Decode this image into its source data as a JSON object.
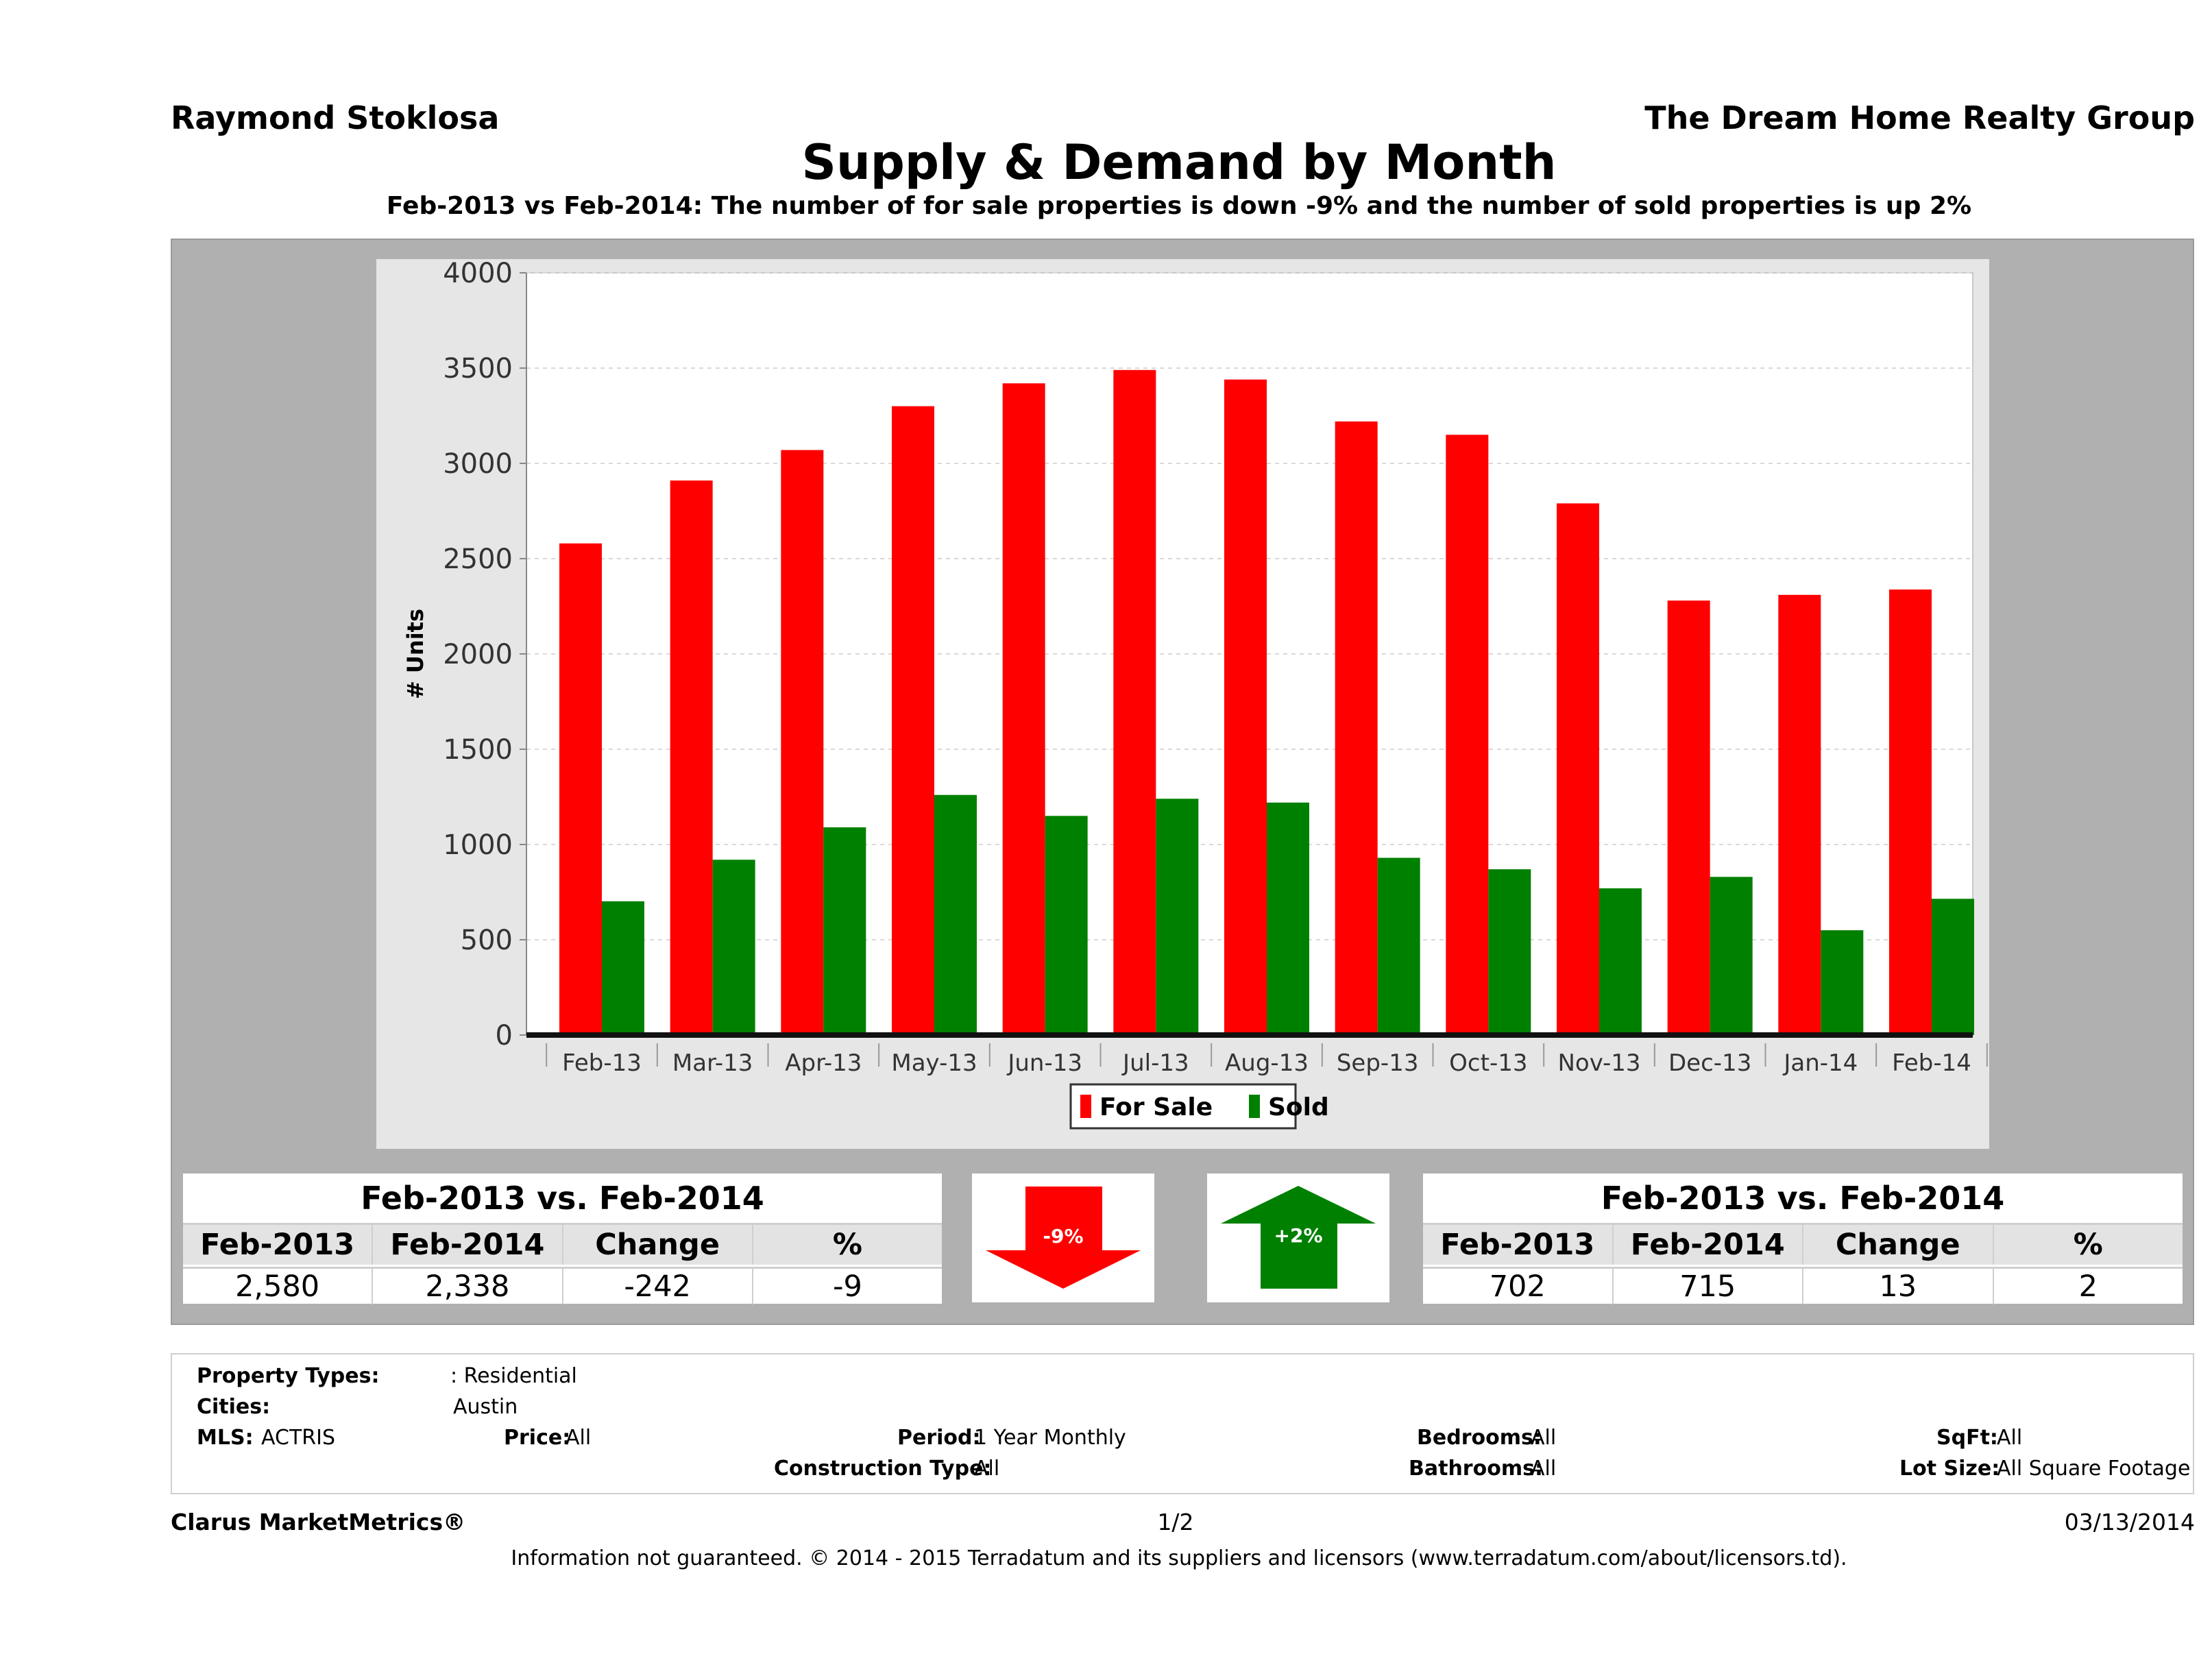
{
  "header": {
    "agent_name": "Raymond Stoklosa",
    "company_name": "The Dream Home Realty Group",
    "title": "Supply & Demand by Month",
    "subtitle": "Feb-2013 vs Feb-2014: The number of for sale properties is down -9% and the number of sold properties is up 2%"
  },
  "chart_data": {
    "type": "bar",
    "title": "",
    "xlabel": "",
    "ylabel": "# Units",
    "ylim": [
      0,
      4000
    ],
    "yticks": [
      "0",
      "500",
      "1000",
      "1500",
      "2000",
      "2500",
      "3000",
      "3500",
      "4000"
    ],
    "categories": [
      "Feb-13",
      "Mar-13",
      "Apr-13",
      "May-13",
      "Jun-13",
      "Jul-13",
      "Aug-13",
      "Sep-13",
      "Oct-13",
      "Nov-13",
      "Dec-13",
      "Jan-14",
      "Feb-14"
    ],
    "series": [
      {
        "name": "For Sale",
        "color": "#ff0000",
        "values": [
          2580,
          2910,
          3070,
          3300,
          3420,
          3490,
          3440,
          3220,
          3150,
          2790,
          2280,
          2310,
          2338
        ]
      },
      {
        "name": "Sold",
        "color": "#008000",
        "values": [
          702,
          920,
          1090,
          1260,
          1150,
          1240,
          1220,
          930,
          870,
          770,
          830,
          550,
          715
        ]
      }
    ],
    "grid": true,
    "legend_position": "bottom"
  },
  "for_sale_table": {
    "caption": "Feb-2013 vs. Feb-2014",
    "headers": [
      "Feb-2013",
      "Feb-2014",
      "Change",
      "%"
    ],
    "values": [
      "2,580",
      "2,338",
      "-242",
      "-9"
    ]
  },
  "sold_table": {
    "caption": "Feb-2013 vs. Feb-2014",
    "headers": [
      "Feb-2013",
      "Feb-2014",
      "Change",
      "%"
    ],
    "values": [
      "702",
      "715",
      "13",
      "2"
    ]
  },
  "indicators": {
    "down_label": "-9%",
    "down_color": "#ff0000",
    "up_label": "+2%",
    "up_color": "#008000"
  },
  "criteria": {
    "property_types_label": "Property Types:",
    "property_types_value": ": Residential",
    "cities_label": "Cities:",
    "cities_value": "Austin",
    "mls_label": "MLS:",
    "mls_value": "ACTRIS",
    "price_label": "Price:",
    "price_value": "All",
    "period_label": "Period:",
    "period_value": "1 Year Monthly",
    "construction_label": "Construction Type:",
    "construction_value": "All",
    "bedrooms_label": "Bedrooms:",
    "bedrooms_value": "All",
    "bathrooms_label": "Bathrooms:",
    "bathrooms_value": "All",
    "sqft_label": "SqFt:",
    "sqft_value": "All",
    "lotsize_label": "Lot Size:",
    "lotsize_value": "All Square Footage"
  },
  "footer": {
    "brand": "Clarus MarketMetrics®",
    "page": "1/2",
    "date": "03/13/2014",
    "disclaimer": "Information not guaranteed. © 2014 - 2015 Terradatum and its suppliers and licensors (www.terradatum.com/about/licensors.td)."
  }
}
